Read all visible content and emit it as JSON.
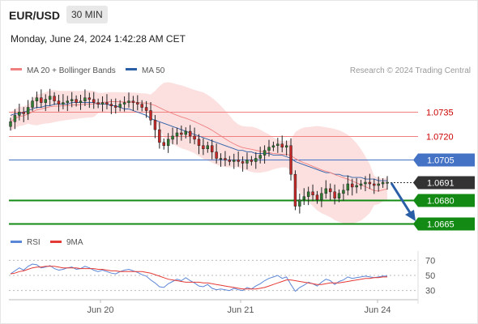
{
  "header": {
    "pair": "EUR/USD",
    "timeframe": "30 MIN",
    "datetime": "Monday, June 24, 2024 1:42:28 AM CET"
  },
  "legend": {
    "ma20": "MA 20 + Bollinger Bands",
    "ma50": "MA 50",
    "credit": "Research © 2024 Trading Central"
  },
  "rsi_legend": {
    "rsi": "RSI",
    "ma9": "9MA"
  },
  "colors": {
    "ma20": "#f08080",
    "ma50": "#2a5fa8",
    "bands": "#fbd5d5",
    "pivot": "#4472c4",
    "support": "#138a13",
    "price": "#333333",
    "resist_line": "#f08080",
    "resist_text": "#cc0000",
    "candle_up": "#2f7d32",
    "candle_down": "#c62828",
    "rsi": "#5b85d6",
    "rsi_ma": "#e53935",
    "arrow": "#2a5fa8"
  },
  "chart_data": {
    "type": "candlestick",
    "ylim": [
      1.0659,
      1.0752
    ],
    "x_ticks": [
      "Jun 20",
      "Jun 21",
      "Jun 24"
    ],
    "levels": [
      {
        "value": 1.0735,
        "label": "1.0735",
        "kind": "resistance"
      },
      {
        "value": 1.072,
        "label": "1.0720",
        "kind": "resistance"
      },
      {
        "value": 1.0705,
        "label": "1.0705",
        "kind": "pivot"
      },
      {
        "value": 1.0691,
        "label": "1.0691",
        "kind": "last_price"
      },
      {
        "value": 1.068,
        "label": "1.0680",
        "kind": "support"
      },
      {
        "value": 1.0665,
        "label": "1.0665",
        "kind": "support"
      }
    ],
    "close": [
      1.0729,
      1.0733,
      1.0735,
      1.0734,
      1.0738,
      1.0742,
      1.0744,
      1.0741,
      1.0743,
      1.0745,
      1.0742,
      1.074,
      1.0741,
      1.0742,
      1.0743,
      1.0741,
      1.0742,
      1.0744,
      1.0743,
      1.0741,
      1.074,
      1.0741,
      1.074,
      1.0739,
      1.0738,
      1.074,
      1.0741,
      1.0742,
      1.0741,
      1.074,
      1.0738,
      1.0736,
      1.073,
      1.0724,
      1.0716,
      1.0714,
      1.0718,
      1.072,
      1.0722,
      1.0721,
      1.0723,
      1.072,
      1.0718,
      1.0714,
      1.0712,
      1.0714,
      1.071,
      1.0706,
      1.0706,
      1.0705,
      1.0704,
      1.0705,
      1.0704,
      1.0703,
      1.0705,
      1.0704,
      1.0706,
      1.0708,
      1.0711,
      1.0713,
      1.0714,
      1.0715,
      1.0713,
      1.0714,
      1.0696,
      1.0676,
      1.068,
      1.0682,
      1.0685,
      1.0683,
      1.068,
      1.0684,
      1.0687,
      1.0685,
      1.0681,
      1.0684,
      1.0686,
      1.069,
      1.0688,
      1.0689,
      1.069,
      1.0691,
      1.069,
      1.0689,
      1.069,
      1.0691,
      1.0691
    ],
    "ma50": [
      1.0733,
      1.0734,
      1.0734,
      1.0735,
      1.0736,
      1.0737,
      1.0738,
      1.0738,
      1.0739,
      1.0739,
      1.074,
      1.074,
      1.074,
      1.074,
      1.0741,
      1.0741,
      1.0741,
      1.0741,
      1.0741,
      1.0741,
      1.074,
      1.074,
      1.074,
      1.0739,
      1.0739,
      1.0738,
      1.0737,
      1.0737,
      1.0736,
      1.0735,
      1.0734,
      1.0733,
      1.0731,
      1.073,
      1.0729,
      1.0728,
      1.0727,
      1.0726,
      1.0725,
      1.0724,
      1.0723,
      1.0722,
      1.0721,
      1.072,
      1.0719,
      1.0718,
      1.0717,
      1.0716,
      1.0715,
      1.0714,
      1.0713,
      1.0712,
      1.0711,
      1.0711,
      1.071,
      1.071,
      1.0709,
      1.0709,
      1.0709,
      1.0709,
      1.0708,
      1.0708,
      1.0708,
      1.0707,
      1.0706,
      1.0704,
      1.0703,
      1.0702,
      1.0701,
      1.07,
      1.0699,
      1.0698,
      1.0697,
      1.0697,
      1.0696,
      1.0696,
      1.0695,
      1.0695,
      1.0694,
      1.0694,
      1.0694,
      1.0693,
      1.0693,
      1.0693,
      1.0692,
      1.0692,
      1.0692
    ],
    "rsi_ylim": [
      20,
      80
    ],
    "rsi_ticks": [
      70,
      50,
      30
    ],
    "rsi": [
      52,
      56,
      60,
      57,
      62,
      65,
      64,
      60,
      61,
      63,
      59,
      57,
      58,
      60,
      61,
      58,
      59,
      62,
      60,
      57,
      55,
      57,
      55,
      53,
      52,
      55,
      57,
      58,
      56,
      54,
      51,
      49,
      44,
      40,
      35,
      34,
      39,
      42,
      45,
      43,
      47,
      43,
      40,
      36,
      35,
      38,
      33,
      31,
      32,
      31,
      30,
      33,
      31,
      30,
      34,
      32,
      36,
      39,
      43,
      46,
      48,
      50,
      46,
      48,
      38,
      29,
      34,
      37,
      41,
      39,
      36,
      41,
      45,
      43,
      38,
      42,
      44,
      48,
      46,
      47,
      48,
      49,
      48,
      47,
      48,
      49,
      49
    ],
    "rsi_ma": [
      52,
      53,
      55,
      56,
      58,
      60,
      61,
      61,
      62,
      62,
      62,
      61,
      60,
      60,
      60,
      60,
      59,
      59,
      59,
      59,
      58,
      58,
      57,
      56,
      56,
      55,
      55,
      55,
      55,
      55,
      55,
      54,
      53,
      51,
      49,
      47,
      45,
      44,
      43,
      42,
      41,
      41,
      41,
      41,
      40,
      40,
      39,
      38,
      37,
      36,
      35,
      34,
      33,
      32,
      32,
      32,
      32,
      33,
      34,
      36,
      38,
      40,
      42,
      44,
      44,
      43,
      42,
      41,
      40,
      39,
      38,
      38,
      39,
      40,
      40,
      40,
      41,
      42,
      43,
      44,
      45,
      46,
      46,
      47,
      47,
      48,
      48
    ]
  }
}
